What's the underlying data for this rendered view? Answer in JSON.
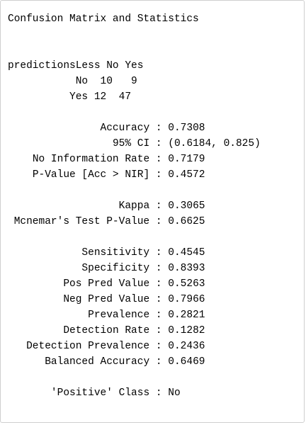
{
  "console_output": {
    "title": "Confusion Matrix and Statistics",
    "matrix": {
      "corner_label": "predictionsLess",
      "col_headers": [
        "No",
        "Yes"
      ],
      "rows": [
        {
          "label": "No",
          "values": [
            "10",
            "9"
          ]
        },
        {
          "label": "Yes",
          "values": [
            "12",
            "47"
          ]
        }
      ]
    },
    "stats": [
      [
        {
          "label": "Accuracy",
          "value": "0.7308"
        },
        {
          "label": "95% CI",
          "value": "(0.6184, 0.825)"
        },
        {
          "label": "No Information Rate",
          "value": "0.7179"
        },
        {
          "label": "P-Value [Acc > NIR]",
          "value": "0.4572"
        }
      ],
      [
        {
          "label": "Kappa",
          "value": "0.3065"
        },
        {
          "label": "Mcnemar's Test P-Value",
          "value": "0.6625"
        }
      ],
      [
        {
          "label": "Sensitivity",
          "value": "0.4545"
        },
        {
          "label": "Specificity",
          "value": "0.8393"
        },
        {
          "label": "Pos Pred Value",
          "value": "0.5263"
        },
        {
          "label": "Neg Pred Value",
          "value": "0.7966"
        },
        {
          "label": "Prevalence",
          "value": "0.2821"
        },
        {
          "label": "Detection Rate",
          "value": "0.1282"
        },
        {
          "label": "Detection Prevalence",
          "value": "0.2436"
        },
        {
          "label": "Balanced Accuracy",
          "value": "0.6469"
        }
      ],
      [
        {
          "label": "'Positive' Class",
          "value": "No"
        }
      ]
    ]
  },
  "colors": {
    "text": "#000000",
    "background": "#ffffff",
    "border": "#cfcfcf"
  }
}
